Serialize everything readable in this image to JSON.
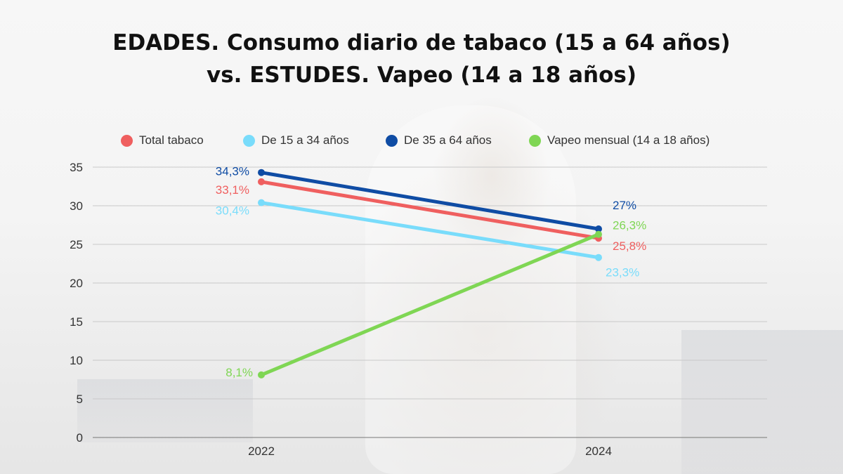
{
  "title_line1": "EDADES. Consumo diario de tabaco (15 a 64 años)",
  "title_line2": "vs. ESTUDES. Vapeo (14 a 18 años)",
  "chart_data": {
    "type": "line",
    "x": [
      "2022",
      "2024"
    ],
    "ylim": [
      0,
      35
    ],
    "yticks": [
      "0",
      "5",
      "10",
      "15",
      "20",
      "25",
      "30",
      "35"
    ],
    "grid": true,
    "legend_position": "top",
    "series": [
      {
        "name": "Total tabaco",
        "color": "#ef5f5f",
        "values": [
          33.1,
          25.8
        ],
        "labels": [
          "33,1%",
          "25,8%"
        ]
      },
      {
        "name": "De 15 a 34 años",
        "color": "#79dcfb",
        "values": [
          30.4,
          23.3
        ],
        "labels": [
          "30,4%",
          "23,3%"
        ]
      },
      {
        "name": "De 35 a 64 años",
        "color": "#0f4ca4",
        "values": [
          34.3,
          27.0
        ],
        "labels": [
          "34,3%",
          "27%"
        ]
      },
      {
        "name": "Vapeo mensual (14 a 18 años)",
        "color": "#7fd654",
        "values": [
          8.1,
          26.3
        ],
        "labels": [
          "8,1%",
          "26,3%"
        ]
      }
    ]
  }
}
